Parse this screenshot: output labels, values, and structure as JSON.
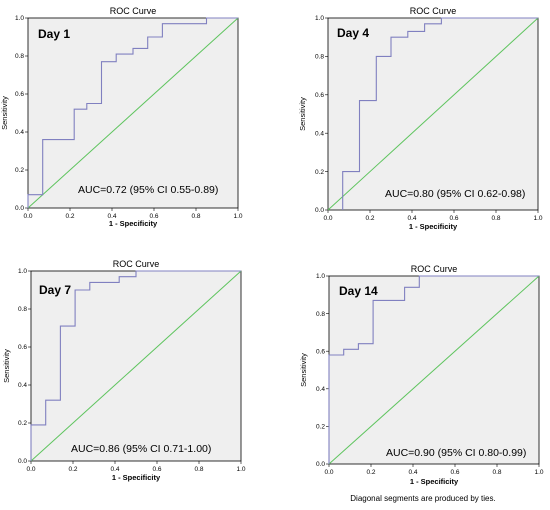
{
  "footnote": "Diagonal segments are produced by ties.",
  "colors": {
    "roc_line": "#8080c0",
    "reference_line": "#5ec45e",
    "plot_background": "#efefef"
  },
  "chart_data": [
    {
      "type": "line",
      "title": "ROC Curve",
      "xlabel": "1 - Specificity",
      "ylabel": "Sensitivity",
      "xlim": [
        0,
        1
      ],
      "ylim": [
        0,
        1
      ],
      "ticks": [
        "0.0",
        "0.2",
        "0.4",
        "0.6",
        "0.8",
        "1.0"
      ],
      "annotation": "Day 1",
      "auc_text": "AUC=0.72 (95% CI 0.55-0.89)",
      "series": [
        {
          "x": [
            0,
            0,
            0.07,
            0.07,
            0.22,
            0.22,
            0.28,
            0.28,
            0.35,
            0.35,
            0.42,
            0.42,
            0.5,
            0.5,
            0.57,
            0.57,
            0.64,
            0.64,
            0.85,
            0.85,
            1.0
          ],
          "y": [
            0,
            0.07,
            0.07,
            0.36,
            0.36,
            0.52,
            0.52,
            0.55,
            0.55,
            0.77,
            0.77,
            0.81,
            0.81,
            0.84,
            0.84,
            0.9,
            0.9,
            0.97,
            0.97,
            1.0,
            1.0
          ]
        },
        {
          "x": [
            0,
            1
          ],
          "y": [
            0,
            1
          ]
        }
      ]
    },
    {
      "type": "line",
      "title": "ROC Curve",
      "xlabel": "1 - Specificity",
      "ylabel": "Sensitivity",
      "xlim": [
        0,
        1
      ],
      "ylim": [
        0,
        1
      ],
      "ticks": [
        "0.0",
        "0.2",
        "0.4",
        "0.6",
        "0.8",
        "1.0"
      ],
      "annotation": "Day 4",
      "auc_text": "AUC=0.80 (95% CI 0.62-0.98)",
      "series": [
        {
          "x": [
            0.07,
            0.07,
            0.15,
            0.15,
            0.23,
            0.23,
            0.3,
            0.3,
            0.38,
            0.38,
            0.46,
            0.46,
            0.54,
            0.54,
            1.0
          ],
          "y": [
            0,
            0.2,
            0.2,
            0.57,
            0.57,
            0.8,
            0.8,
            0.9,
            0.9,
            0.93,
            0.93,
            0.97,
            0.97,
            1.0,
            1.0
          ]
        },
        {
          "x": [
            0,
            1
          ],
          "y": [
            0,
            1
          ]
        }
      ]
    },
    {
      "type": "line",
      "title": "ROC Curve",
      "xlabel": "1 - Specificity",
      "ylabel": "Sensitivity",
      "xlim": [
        0,
        1
      ],
      "ylim": [
        0,
        1
      ],
      "ticks": [
        "0.0",
        "0.2",
        "0.4",
        "0.6",
        "0.8",
        "1.0"
      ],
      "annotation": "Day 7",
      "auc_text": "AUC=0.86 (95% CI 0.71-1.00)",
      "series": [
        {
          "x": [
            0,
            0,
            0.07,
            0.07,
            0.14,
            0.14,
            0.21,
            0.21,
            0.28,
            0.28,
            0.42,
            0.42,
            0.5,
            0.5,
            1.0
          ],
          "y": [
            0,
            0.19,
            0.19,
            0.32,
            0.32,
            0.71,
            0.71,
            0.9,
            0.9,
            0.94,
            0.94,
            0.97,
            0.97,
            1.0,
            1.0
          ]
        },
        {
          "x": [
            0,
            1
          ],
          "y": [
            0,
            1
          ]
        }
      ]
    },
    {
      "type": "line",
      "title": "ROC Curve",
      "xlabel": "1 - Specificity",
      "ylabel": "Sensitivity",
      "xlim": [
        0,
        1
      ],
      "ylim": [
        0,
        1
      ],
      "ticks": [
        "0.0",
        "0.2",
        "0.4",
        "0.6",
        "0.8",
        "1.0"
      ],
      "annotation": "Day 14",
      "auc_text": "AUC=0.90 (95% CI 0.80-0.99)",
      "series": [
        {
          "x": [
            0,
            0,
            0.07,
            0.07,
            0.14,
            0.14,
            0.21,
            0.21,
            0.36,
            0.36,
            0.43,
            0.43,
            1.0
          ],
          "y": [
            0,
            0.58,
            0.58,
            0.61,
            0.61,
            0.64,
            0.64,
            0.87,
            0.87,
            0.94,
            0.94,
            1.0,
            1.0
          ]
        },
        {
          "x": [
            0,
            1
          ],
          "y": [
            0,
            1
          ]
        }
      ]
    }
  ]
}
